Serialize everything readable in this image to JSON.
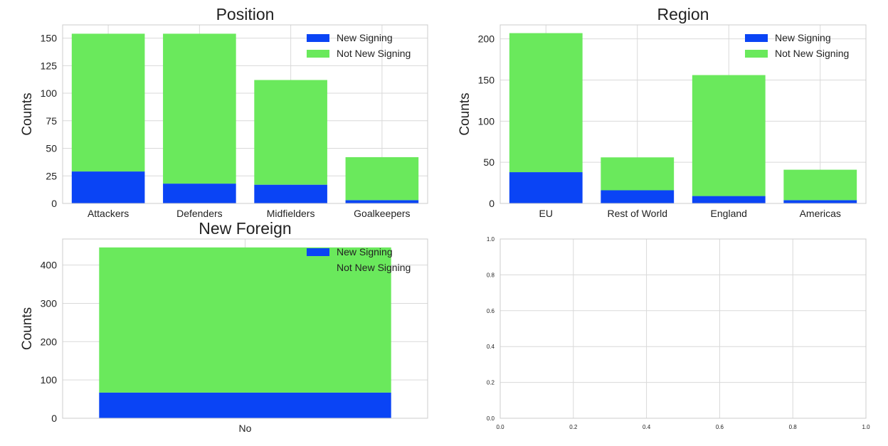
{
  "colors": {
    "new_signing": "#0a44f5",
    "not_new_signing": "#6ae95c",
    "grid": "#d9d9d9",
    "frame": "#cccccc",
    "text": "#222222"
  },
  "chart_data": [
    {
      "type": "bar",
      "stacked": true,
      "title": "Position",
      "xlabel": "",
      "ylabel": "Counts",
      "categories": [
        "Attackers",
        "Defenders",
        "Midfielders",
        "Goalkeepers"
      ],
      "series": [
        {
          "name": "New Signing",
          "values": [
            29,
            18,
            17,
            3
          ]
        },
        {
          "name": "Not New Signing",
          "values": [
            125,
            136,
            95,
            39
          ]
        }
      ],
      "ylim": [
        0,
        162
      ],
      "yticks": [
        0,
        25,
        50,
        75,
        100,
        125,
        150
      ],
      "legend": "top-right",
      "grid": true
    },
    {
      "type": "bar",
      "stacked": true,
      "title": "Region",
      "xlabel": "",
      "ylabel": "Counts",
      "categories": [
        "EU",
        "Rest of World",
        "England",
        "Americas"
      ],
      "series": [
        {
          "name": "New Signing",
          "values": [
            38,
            16,
            9,
            4
          ]
        },
        {
          "name": "Not New Signing",
          "values": [
            169,
            40,
            147,
            37
          ]
        }
      ],
      "ylim": [
        0,
        217
      ],
      "yticks": [
        0,
        50,
        100,
        150,
        200
      ],
      "legend": "top-right",
      "grid": true
    },
    {
      "type": "bar",
      "stacked": true,
      "title": "New Foreign",
      "xlabel": "",
      "ylabel": "Counts",
      "categories": [
        "No"
      ],
      "series": [
        {
          "name": "New Signing",
          "values": [
            67
          ]
        },
        {
          "name": "Not New Signing",
          "values": [
            379
          ]
        }
      ],
      "ylim": [
        0,
        468
      ],
      "yticks": [
        0,
        100,
        200,
        300,
        400
      ],
      "legend": "top-right",
      "grid": true
    },
    {
      "type": "empty",
      "title": "",
      "xlabel": "",
      "ylabel": "",
      "xlim": [
        0,
        1
      ],
      "ylim": [
        0,
        1
      ],
      "xticks": [
        "0.0",
        "0.2",
        "0.4",
        "0.6",
        "0.8",
        "1.0"
      ],
      "yticks": [
        "0.0",
        "0.2",
        "0.4",
        "0.6",
        "0.8",
        "1.0"
      ],
      "grid": true
    }
  ]
}
